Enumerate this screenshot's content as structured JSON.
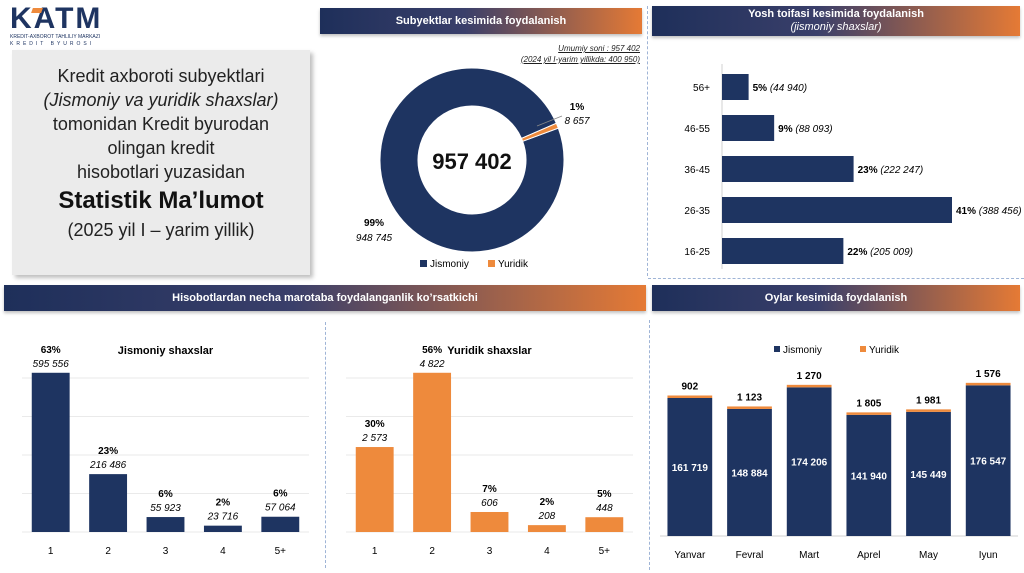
{
  "logo": {
    "text": "KATM",
    "line1": "KREDIT-AXBOROT TAHLILIY MARKAZI",
    "line2": "KREDIT BYUROSI"
  },
  "title": {
    "line1": "Kredit axboroti subyektlari",
    "line2": "(Jismoniy va yuridik shaxslar)",
    "line3": "tomonidan Kredit byurodan",
    "line4": "olingan kredit",
    "line5": "hisobotlari yuzasidan",
    "line6": "Statistik Ma’lumot",
    "line7": "(2025 yil I – yarim yillik)"
  },
  "banners": {
    "subjects": "Subyektlar kesimida foydalanish",
    "age": "Yosh toifasi kesimida foydalanish",
    "age_sub": "(jismoniy shaxslar)",
    "frequency": "Hisobotlardan necha marotaba foydalanganlik ko’rsatkichi",
    "months": "Oylar kesimida foydalanish"
  },
  "colors": {
    "navy": "#1e3461",
    "orange": "#ee8a3c",
    "grid": "#d9d9d9"
  },
  "chart_data": [
    {
      "type": "pie",
      "name": "subjects",
      "center_label": "957 402",
      "notes": [
        "Umumiy soni : 957 402",
        "(2024 yil I-yarim yillikda: 400 950)"
      ],
      "slices": [
        {
          "label": "Jismoniy",
          "value": 948745,
          "pct_label": "99%",
          "value_label": "948 745"
        },
        {
          "label": "Yuridik",
          "value": 8657,
          "pct_label": "1%",
          "value_label": "8 657"
        }
      ]
    },
    {
      "type": "bar",
      "name": "age",
      "orientation": "horizontal",
      "categories": [
        "56+",
        "46-55",
        "36-45",
        "26-35",
        "16-25"
      ],
      "values": [
        44940,
        88093,
        222247,
        388456,
        205009
      ],
      "pct_labels": [
        "5%",
        "9%",
        "23%",
        "41%",
        "22%"
      ],
      "value_labels": [
        "(44 940)",
        "(88 093)",
        "(222 247)",
        "(388 456)",
        "(205 009)"
      ]
    },
    {
      "type": "bar",
      "name": "jismoniy_frequency",
      "title": "Jismoniy shaxslar",
      "categories": [
        "1",
        "2",
        "3",
        "4",
        "5+"
      ],
      "values": [
        595556,
        216486,
        55923,
        23716,
        57064
      ],
      "pct_labels": [
        "63%",
        "23%",
        "6%",
        "2%",
        "6%"
      ],
      "value_labels": [
        "595 556",
        "216 486",
        "55 923",
        "23 716",
        "57 064"
      ]
    },
    {
      "type": "bar",
      "name": "yuridik_frequency",
      "title": "Yuridik shaxslar",
      "categories": [
        "1",
        "2",
        "3",
        "4",
        "5+"
      ],
      "values": [
        2573,
        4822,
        606,
        208,
        448
      ],
      "pct_labels": [
        "30%",
        "56%",
        "7%",
        "2%",
        "5%"
      ],
      "value_labels": [
        "2 573",
        "4 822",
        "606",
        "208",
        "448"
      ]
    },
    {
      "type": "bar",
      "name": "months",
      "stacked": true,
      "categories": [
        "Yanvar",
        "Fevral",
        "Mart",
        "Aprel",
        "May",
        "Iyun"
      ],
      "series": [
        {
          "name": "Jismoniy",
          "values": [
            161719,
            148884,
            174206,
            141940,
            145449,
            176547
          ],
          "value_labels": [
            "161 719",
            "148 884",
            "174 206",
            "141 940",
            "145 449",
            "176 547"
          ]
        },
        {
          "name": "Yuridik",
          "values": [
            902,
            1123,
            1270,
            1805,
            1981,
            1576
          ],
          "value_labels": [
            "902",
            "1 123",
            "1 270",
            "1 805",
            "1 981",
            "1 576"
          ]
        }
      ]
    }
  ]
}
